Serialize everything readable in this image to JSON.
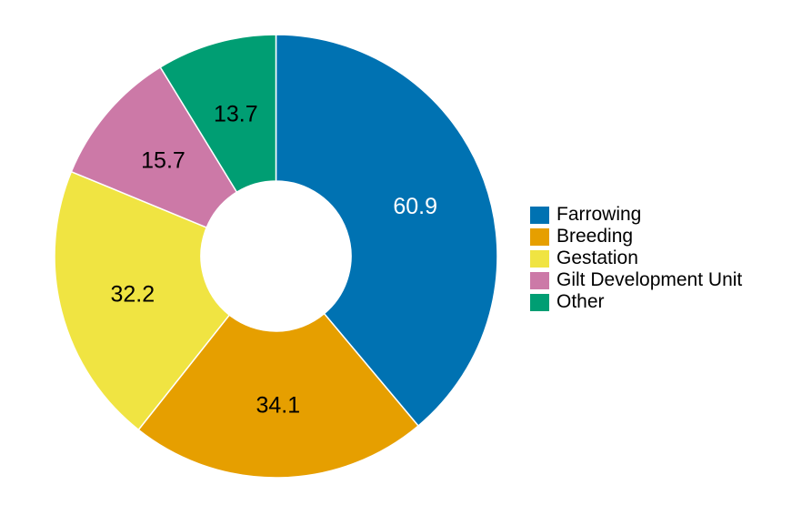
{
  "chart_data": {
    "type": "pie",
    "subtype": "donut",
    "title": "",
    "categories": [
      "Farrowing",
      "Breeding",
      "Gestation",
      "Gilt Development Unit",
      "Other"
    ],
    "values": [
      60.9,
      34.1,
      32.2,
      15.7,
      13.7
    ],
    "colors": [
      "#0072B2",
      "#E69F00",
      "#F0E442",
      "#CC79A7",
      "#009E73"
    ],
    "label_colors": [
      "#ffffff",
      "#000000",
      "#000000",
      "#000000",
      "#000000"
    ],
    "data_labels": [
      "60.9",
      "34.1",
      "32.2",
      "15.7",
      "13.7"
    ],
    "start_angle": "12 o'clock",
    "direction": "clockwise",
    "legend_position": "right"
  },
  "legend": {
    "items": [
      {
        "label": "Farrowing",
        "color": "#0072B2"
      },
      {
        "label": "Breeding",
        "color": "#E69F00"
      },
      {
        "label": "Gestation",
        "color": "#F0E442"
      },
      {
        "label": "Gilt Development Unit",
        "color": "#CC79A7"
      },
      {
        "label": "Other",
        "color": "#009E73"
      }
    ]
  }
}
